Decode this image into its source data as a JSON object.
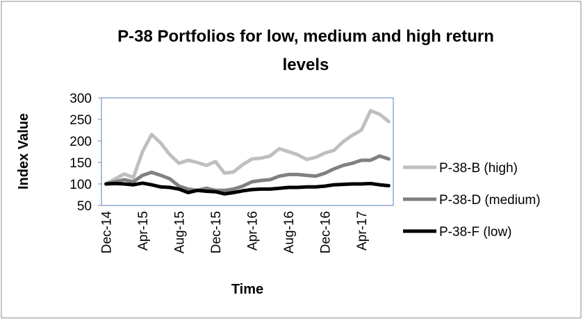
{
  "chart_data": {
    "type": "line",
    "title": [
      "P-38 Portfolios for low, medium and high return",
      "levels"
    ],
    "x_label": "Time",
    "y_label": "Index Value",
    "categories": [
      "Dec-14",
      null,
      null,
      null,
      "Apr-15",
      null,
      null,
      null,
      "Aug-15",
      null,
      null,
      null,
      "Dec-15",
      null,
      null,
      null,
      "Apr-16",
      null,
      null,
      null,
      "Aug-16",
      null,
      null,
      null,
      "Dec-16",
      null,
      null,
      null,
      "Apr-17",
      null,
      null,
      null
    ],
    "series": [
      {
        "name": "P-38-B (high)",
        "color": "#bfbfbf",
        "values": [
          100,
          112,
          123,
          115,
          175,
          215,
          195,
          168,
          148,
          155,
          150,
          143,
          152,
          125,
          128,
          145,
          158,
          160,
          165,
          182,
          175,
          168,
          157,
          162,
          172,
          178,
          198,
          213,
          225,
          270,
          262,
          245
        ]
      },
      {
        "name": "P-38-D (medium)",
        "color": "#808080",
        "values": [
          100,
          105,
          110,
          105,
          120,
          127,
          120,
          112,
          95,
          88,
          85,
          90,
          85,
          85,
          88,
          95,
          105,
          108,
          110,
          118,
          122,
          122,
          120,
          118,
          125,
          135,
          143,
          148,
          155,
          155,
          165,
          158
        ]
      },
      {
        "name": "P-38-F (low)",
        "color": "#000000",
        "values": [
          100,
          101,
          100,
          98,
          102,
          98,
          93,
          92,
          88,
          80,
          85,
          83,
          82,
          77,
          80,
          84,
          87,
          88,
          88,
          90,
          92,
          92,
          93,
          93,
          95,
          98,
          99,
          100,
          100,
          101,
          98,
          96
        ]
      }
    ],
    "ylim": [
      50,
      300
    ],
    "yticks": [
      50,
      100,
      150,
      200,
      250,
      300
    ],
    "grid": false,
    "legend": "right"
  }
}
